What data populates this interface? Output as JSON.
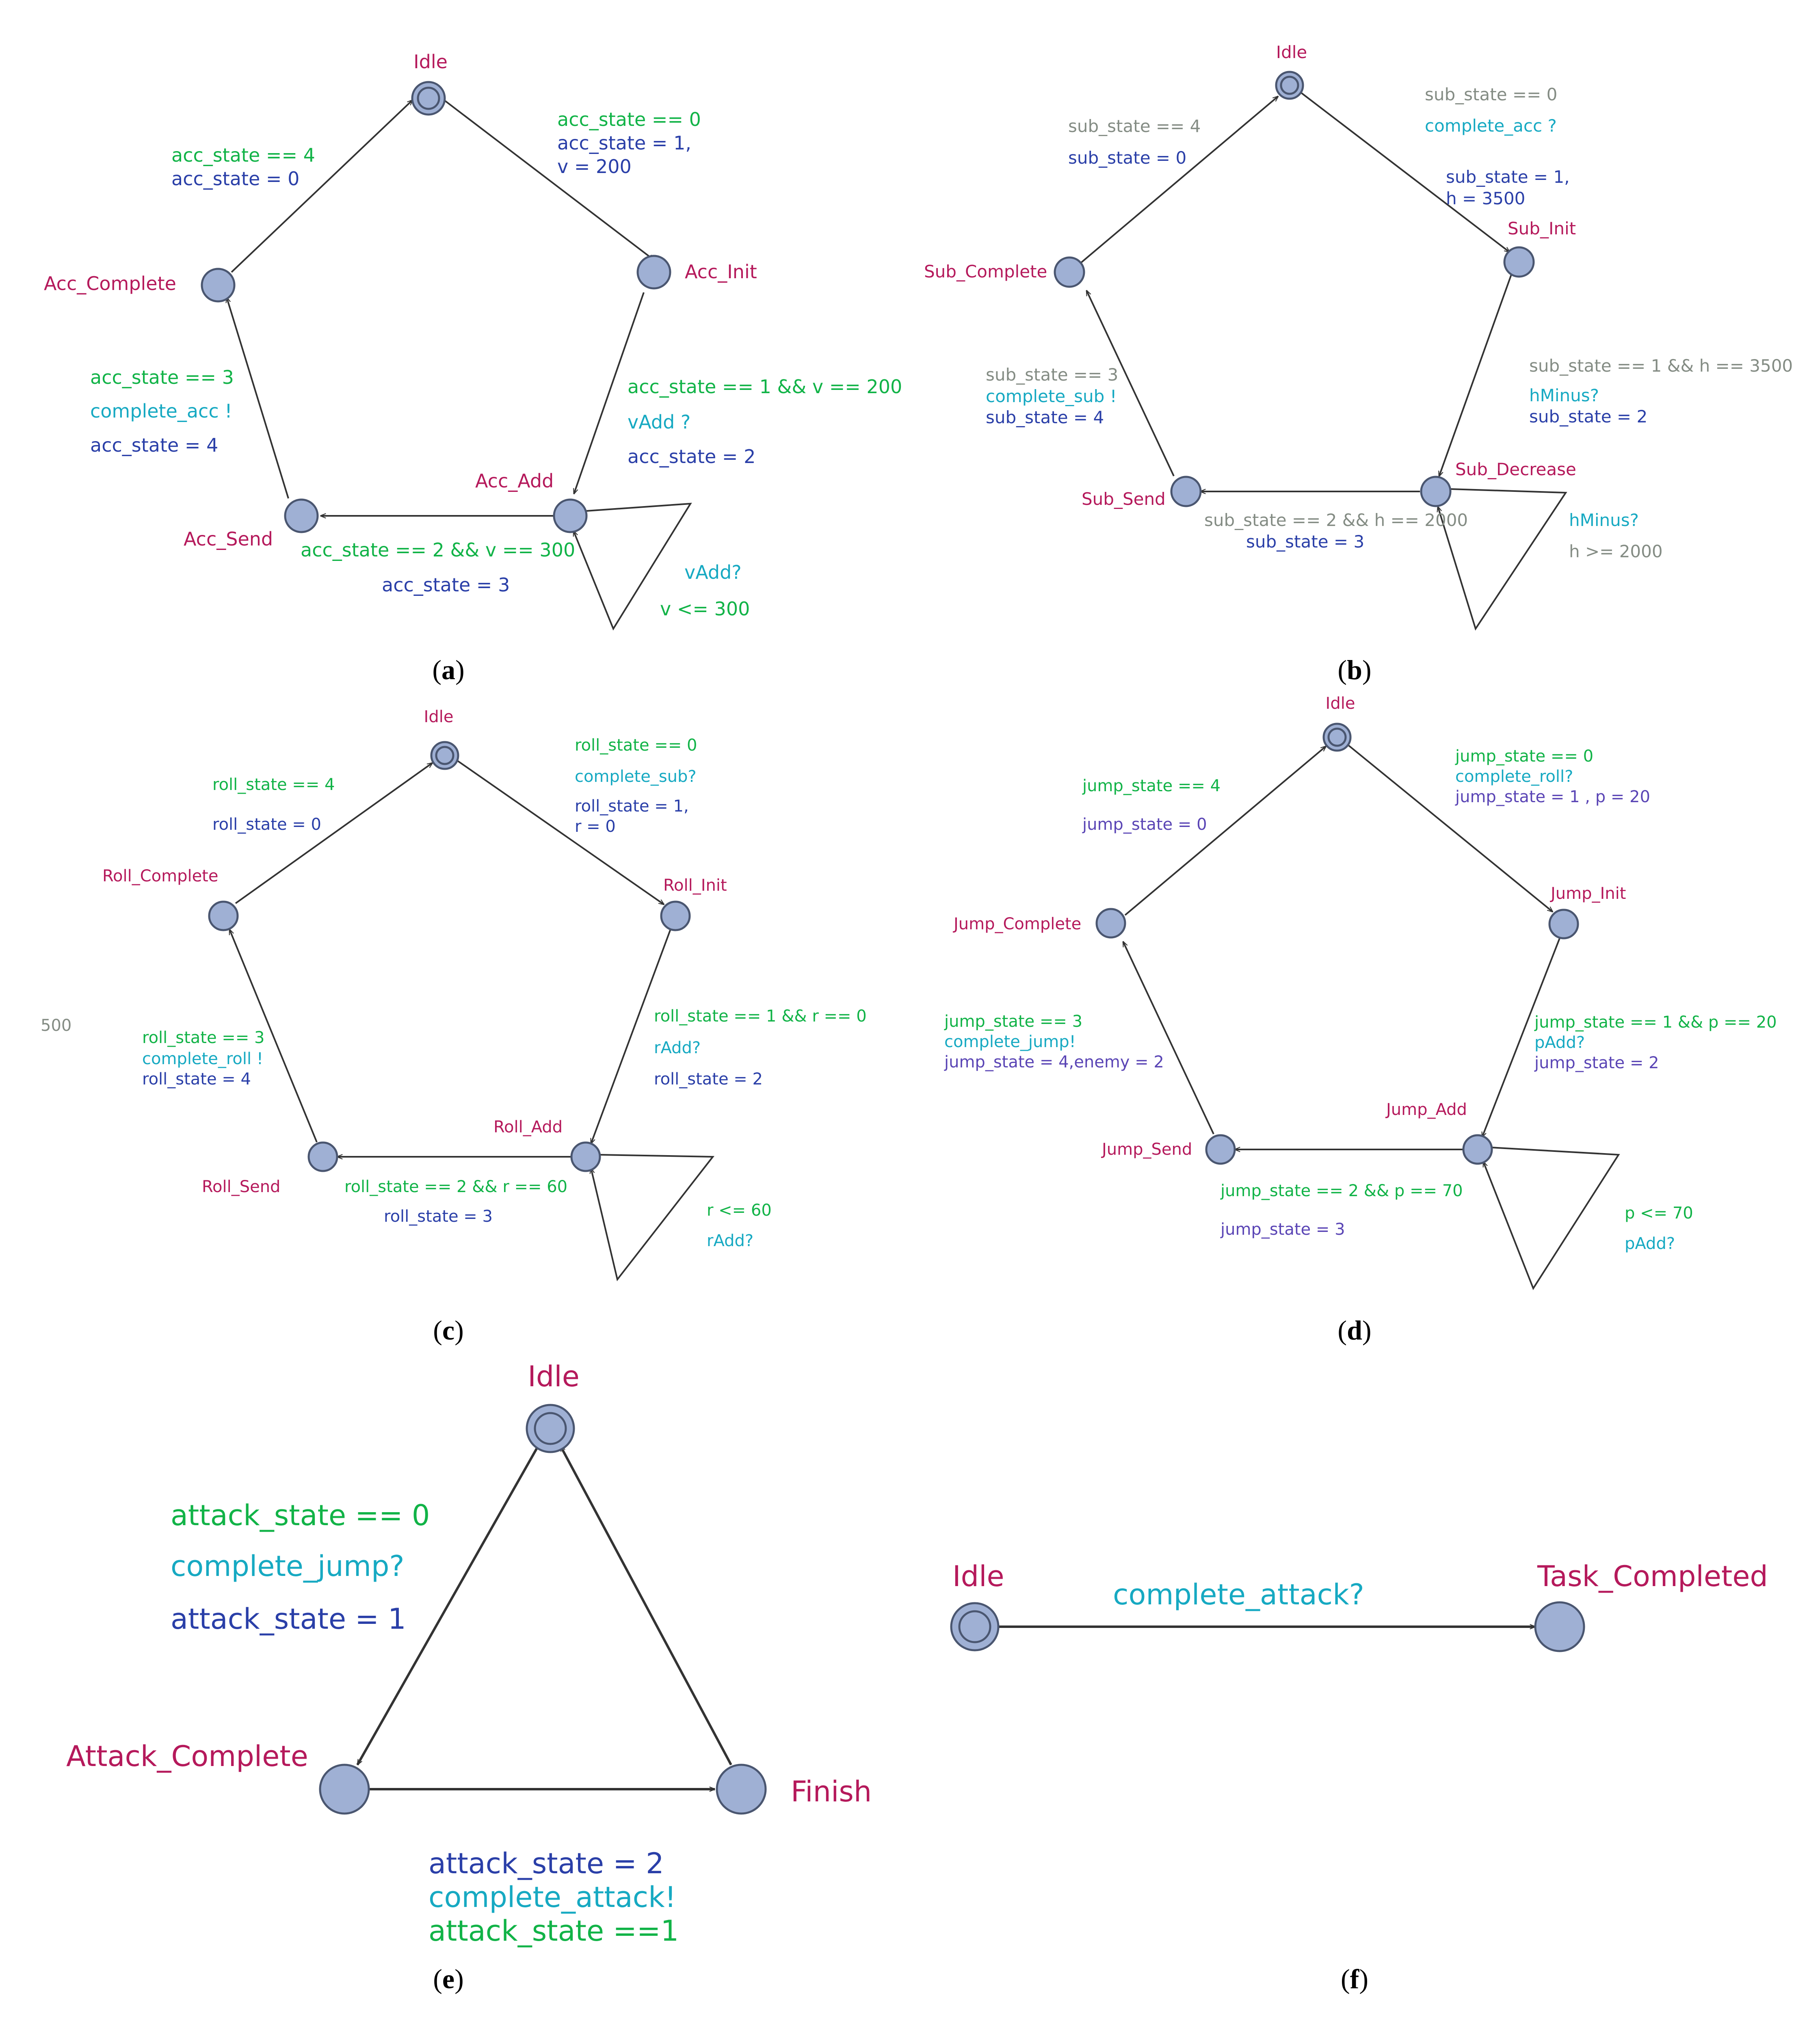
{
  "a": {
    "caption_open": "(",
    "caption_letter": "a",
    "caption_close": ")",
    "locations": {
      "idle": "Idle",
      "acc_init": "Acc_Init",
      "acc_add": "Acc_Add",
      "acc_send": "Acc_Send",
      "acc_complete": "Acc_Complete"
    },
    "e1": {
      "guard": "acc_state == 0",
      "assign1": "acc_state = 1,",
      "assign2": "v = 200"
    },
    "e2": {
      "guard": "acc_state == 1 && v == 200",
      "sync": "vAdd ?",
      "assign": "acc_state = 2"
    },
    "loop": {
      "sync": "vAdd?",
      "guard": "v <= 300"
    },
    "e3": {
      "guard": "acc_state == 2 &&  v == 300",
      "assign": "acc_state = 3"
    },
    "e4": {
      "guard": "acc_state == 3",
      "sync": "complete_acc !",
      "assign": "acc_state = 4"
    },
    "e5": {
      "guard": "acc_state == 4",
      "assign": "acc_state = 0"
    }
  },
  "b": {
    "caption_open": "(",
    "caption_letter": "b",
    "caption_close": ")",
    "locations": {
      "idle": "Idle",
      "sub_init": "Sub_Init",
      "sub_decrease": "Sub_Decrease",
      "sub_send": "Sub_Send",
      "sub_complete": "Sub_Complete"
    },
    "e1": {
      "guard": "sub_state == 0",
      "sync": "complete_acc ?",
      "assign1": "sub_state = 1,",
      "assign2": "h = 3500"
    },
    "e2": {
      "guard": "sub_state == 1  && h == 3500",
      "sync": "hMinus?",
      "assign": "sub_state = 2"
    },
    "loop": {
      "sync": "hMinus?",
      "guard": "h >= 2000"
    },
    "e3": {
      "guard": "sub_state == 2 && h == 2000",
      "assign": "sub_state = 3"
    },
    "e4": {
      "guard": "sub_state == 3",
      "sync": "complete_sub !",
      "assign": "sub_state = 4"
    },
    "e5": {
      "guard": "sub_state == 4",
      "assign": "sub_state = 0"
    }
  },
  "c": {
    "caption_open": "(",
    "caption_letter": "c",
    "caption_close": ")",
    "stray": "500",
    "locations": {
      "idle": "Idle",
      "roll_init": "Roll_Init",
      "roll_add": "Roll_Add",
      "roll_send": "Roll_Send",
      "roll_complete": "Roll_Complete"
    },
    "e1": {
      "guard": "roll_state == 0",
      "sync": "complete_sub?",
      "assign1": "roll_state = 1,",
      "assign2": "r = 0"
    },
    "e2": {
      "guard": "roll_state == 1 && r == 0",
      "sync": "rAdd?",
      "assign": "roll_state = 2"
    },
    "loop": {
      "guard": "r <= 60",
      "sync": "rAdd?"
    },
    "e3": {
      "guard": "roll_state == 2 && r == 60",
      "assign": "roll_state = 3"
    },
    "e4": {
      "guard": "roll_state == 3",
      "sync": "complete_roll !",
      "assign": "roll_state = 4"
    },
    "e5": {
      "guard": "roll_state == 4",
      "assign": "roll_state = 0"
    }
  },
  "d": {
    "caption_open": "(",
    "caption_letter": "d",
    "caption_close": ")",
    "locations": {
      "idle": "Idle",
      "jump_init": "Jump_Init",
      "jump_add": "Jump_Add",
      "jump_send": "Jump_Send",
      "jump_complete": "Jump_Complete"
    },
    "e1": {
      "guard": "jump_state == 0",
      "sync": "complete_roll?",
      "assign": "jump_state = 1 , p = 20"
    },
    "e2": {
      "guard": "jump_state == 1 && p == 20",
      "sync": "pAdd?",
      "assign": "jump_state = 2"
    },
    "loop": {
      "guard": "p <= 70",
      "sync": "pAdd?"
    },
    "e3": {
      "guard": "jump_state == 2 && p == 70",
      "assign": "jump_state = 3"
    },
    "e4": {
      "guard": "jump_state == 3",
      "sync": "complete_jump!",
      "assign": "jump_state = 4,enemy = 2"
    },
    "e5": {
      "guard": "jump_state == 4",
      "assign": "jump_state = 0"
    }
  },
  "e": {
    "caption_open": "(",
    "caption_letter": "e",
    "caption_close": ")",
    "locations": {
      "idle": "Idle",
      "attack_complete": "Attack_Complete",
      "finish": "Finish"
    },
    "e1": {
      "guard": "attack_state == 0",
      "sync": "complete_jump?",
      "assign": "attack_state = 1"
    },
    "e2": {
      "assign": "attack_state = 2",
      "sync": "complete_attack!",
      "guard": "attack_state ==1"
    }
  },
  "f": {
    "caption_open": "(",
    "caption_letter": "f",
    "caption_close": ")",
    "locations": {
      "idle": "Idle",
      "task_completed": "Task_Completed"
    },
    "e1": {
      "sync": "complete_attack?"
    }
  },
  "colors": {
    "location": "#b5195b",
    "guard": "#11b347",
    "sync": "#16a9c2",
    "assign": "#2a3fa8",
    "node_fill": "#9fb0d4",
    "gray_text": "#848c84"
  }
}
